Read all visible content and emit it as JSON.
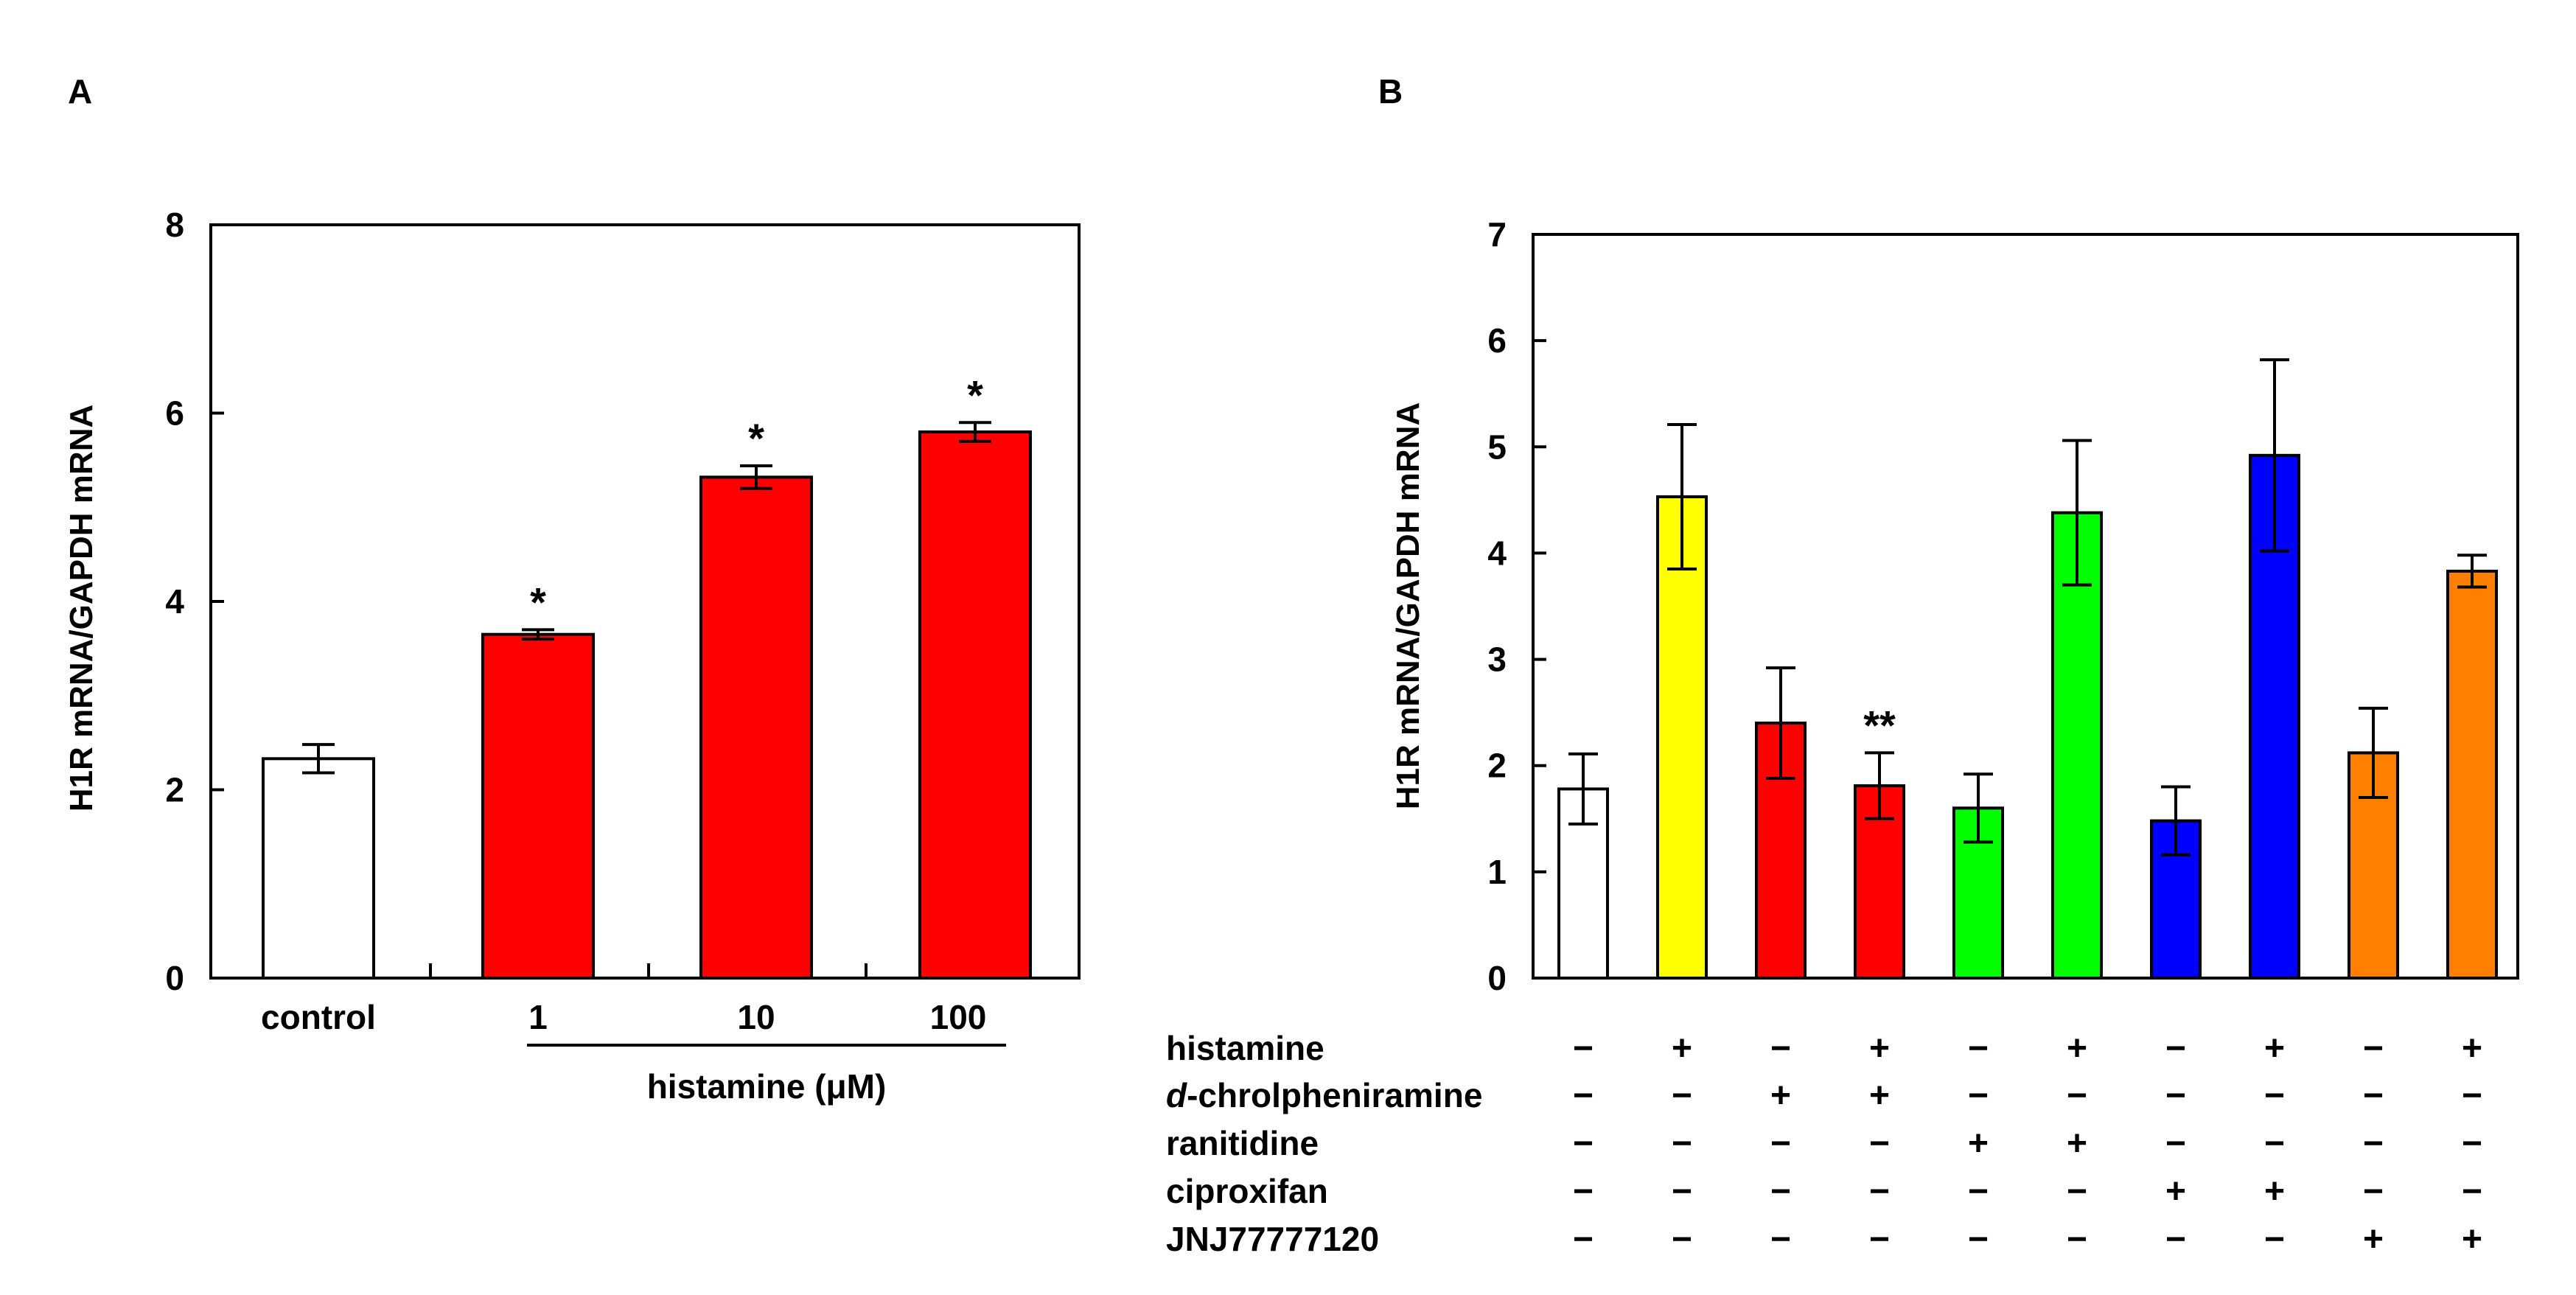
{
  "chart_data": [
    {
      "panel": "A",
      "type": "bar",
      "title": "",
      "xlabel": "",
      "ylabel": "H1R mRNA/GAPDH mRNA",
      "ylim": [
        0,
        8
      ],
      "yticks": [
        "0",
        "2",
        "4",
        "6",
        "8"
      ],
      "categories": [
        "control",
        "1",
        "10",
        "100"
      ],
      "values": [
        2.33,
        3.65,
        5.32,
        5.8
      ],
      "errors": [
        0.15,
        0.05,
        0.12,
        0.1
      ],
      "colors": [
        "#ffffff",
        "#ff0000",
        "#ff0000",
        "#ff0000"
      ],
      "significance": [
        "",
        "*",
        "*",
        "*"
      ],
      "group_label": "histamine (μM)"
    },
    {
      "panel": "B",
      "type": "bar",
      "title": "",
      "xlabel": "",
      "ylabel": "H1R mRNA/GAPDH mRNA",
      "ylim": [
        0,
        7
      ],
      "yticks": [
        "0",
        "1",
        "2",
        "3",
        "4",
        "5",
        "6",
        "7"
      ],
      "values": [
        1.78,
        4.53,
        2.4,
        1.81,
        1.6,
        4.38,
        1.48,
        4.92,
        2.12,
        3.83
      ],
      "errors": [
        0.33,
        0.68,
        0.52,
        0.31,
        0.32,
        0.68,
        0.32,
        0.9,
        0.42,
        0.15
      ],
      "colors": [
        "#ffffff",
        "#ffff00",
        "#ff0000",
        "#ff0000",
        "#00ff00",
        "#00ff00",
        "#0000ff",
        "#0000ff",
        "#ff8000",
        "#ff8000"
      ],
      "significance": [
        "",
        "",
        "",
        "**",
        "",
        "",
        "",
        "",
        "",
        ""
      ],
      "treatments": [
        {
          "name": "histamine",
          "italic_prefix": "",
          "rest": "histamine",
          "signs": [
            "−",
            "+",
            "−",
            "+",
            "−",
            "+",
            "−",
            "+",
            "−",
            "+"
          ]
        },
        {
          "name": "d-chrolpheniramine",
          "italic_prefix": "d",
          "rest": "-chrolpheniramine",
          "signs": [
            "−",
            "−",
            "+",
            "+",
            "−",
            "−",
            "−",
            "−",
            "−",
            "−"
          ]
        },
        {
          "name": "ranitidine",
          "italic_prefix": "",
          "rest": "ranitidine",
          "signs": [
            "−",
            "−",
            "−",
            "−",
            "+",
            "+",
            "−",
            "−",
            "−",
            "−"
          ]
        },
        {
          "name": "ciproxifan",
          "italic_prefix": "",
          "rest": "ciproxifan",
          "signs": [
            "−",
            "−",
            "−",
            "−",
            "−",
            "−",
            "+",
            "+",
            "−",
            "−"
          ]
        },
        {
          "name": "JNJ77777120",
          "italic_prefix": "",
          "rest": "JNJ77777120",
          "signs": [
            "−",
            "−",
            "−",
            "−",
            "−",
            "−",
            "−",
            "−",
            "+",
            "+"
          ]
        }
      ]
    }
  ]
}
